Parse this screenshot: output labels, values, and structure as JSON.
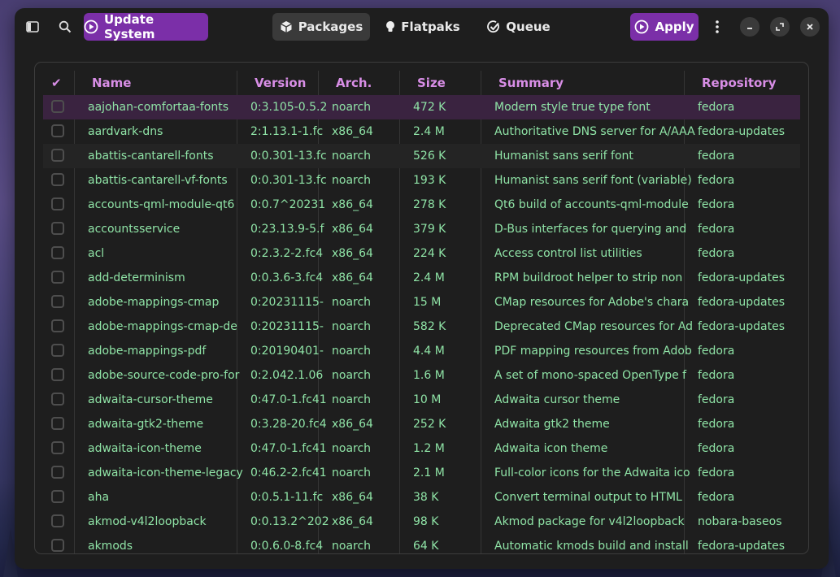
{
  "toolbar": {
    "update_label": "Update System",
    "tabs": [
      {
        "label": "Packages"
      },
      {
        "label": "Flatpaks"
      },
      {
        "label": "Queue"
      }
    ],
    "apply_label": "Apply"
  },
  "table": {
    "check_header": "✔",
    "headers": {
      "name": "Name",
      "version": "Version",
      "arch": "Arch.",
      "size": "Size",
      "summary": "Summary",
      "repo": "Repository"
    },
    "rows": [
      {
        "name": "aajohan-comfortaa-fonts",
        "version": "0:3.105-0.5.2",
        "arch": "noarch",
        "size": "472 K",
        "summary": "Modern style true type font",
        "repo": "fedora"
      },
      {
        "name": "aardvark-dns",
        "version": "2:1.13.1-1.fc",
        "arch": "x86_64",
        "size": "2.4 M",
        "summary": "Authoritative DNS server for A/AAA",
        "repo": "fedora-updates"
      },
      {
        "name": "abattis-cantarell-fonts",
        "version": "0:0.301-13.fc",
        "arch": "noarch",
        "size": "526 K",
        "summary": "Humanist sans serif font",
        "repo": "fedora"
      },
      {
        "name": "abattis-cantarell-vf-fonts",
        "version": "0:0.301-13.fc",
        "arch": "noarch",
        "size": "193 K",
        "summary": "Humanist sans serif font (variable)",
        "repo": "fedora"
      },
      {
        "name": "accounts-qml-module-qt6",
        "version": "0:0.7^20231",
        "arch": "x86_64",
        "size": "278 K",
        "summary": "Qt6 build of accounts-qml-module",
        "repo": "fedora"
      },
      {
        "name": "accountsservice",
        "version": "0:23.13.9-5.f",
        "arch": "x86_64",
        "size": "379 K",
        "summary": "D-Bus interfaces for querying and",
        "repo": "fedora"
      },
      {
        "name": "acl",
        "version": "0:2.3.2-2.fc4",
        "arch": "x86_64",
        "size": "224 K",
        "summary": "Access control list utilities",
        "repo": "fedora"
      },
      {
        "name": "add-determinism",
        "version": "0:0.3.6-3.fc4",
        "arch": "x86_64",
        "size": "2.4 M",
        "summary": "RPM buildroot helper to strip non",
        "repo": "fedora-updates"
      },
      {
        "name": "adobe-mappings-cmap",
        "version": "0:20231115-",
        "arch": "noarch",
        "size": "15 M",
        "summary": "CMap resources for Adobe's chara",
        "repo": "fedora-updates"
      },
      {
        "name": "adobe-mappings-cmap-de",
        "version": "0:20231115-",
        "arch": "noarch",
        "size": "582 K",
        "summary": "Deprecated CMap resources for Ad",
        "repo": "fedora-updates"
      },
      {
        "name": "adobe-mappings-pdf",
        "version": "0:20190401-",
        "arch": "noarch",
        "size": "4.4 M",
        "summary": "PDF mapping resources from Adob",
        "repo": "fedora"
      },
      {
        "name": "adobe-source-code-pro-for",
        "version": "0:2.042.1.06",
        "arch": "noarch",
        "size": "1.6 M",
        "summary": "A set of mono-spaced OpenType f",
        "repo": "fedora"
      },
      {
        "name": "adwaita-cursor-theme",
        "version": "0:47.0-1.fc41",
        "arch": "noarch",
        "size": "10 M",
        "summary": "Adwaita cursor theme",
        "repo": "fedora"
      },
      {
        "name": "adwaita-gtk2-theme",
        "version": "0:3.28-20.fc4",
        "arch": "x86_64",
        "size": "252 K",
        "summary": "Adwaita gtk2 theme",
        "repo": "fedora"
      },
      {
        "name": "adwaita-icon-theme",
        "version": "0:47.0-1.fc41",
        "arch": "noarch",
        "size": "1.2 M",
        "summary": "Adwaita icon theme",
        "repo": "fedora"
      },
      {
        "name": "adwaita-icon-theme-legacy",
        "version": "0:46.2-2.fc41",
        "arch": "noarch",
        "size": "2.1 M",
        "summary": "Full-color icons for the Adwaita ico",
        "repo": "fedora"
      },
      {
        "name": "aha",
        "version": "0:0.5.1-11.fc",
        "arch": "x86_64",
        "size": "38 K",
        "summary": "Convert terminal output to HTML",
        "repo": "fedora"
      },
      {
        "name": "akmod-v4l2loopback",
        "version": "0:0.13.2^202",
        "arch": "x86_64",
        "size": "98 K",
        "summary": "Akmod package for v4l2loopback",
        "repo": "nobara-baseos"
      },
      {
        "name": "akmods",
        "version": "0:0.6.0-8.fc4",
        "arch": "noarch",
        "size": "64 K",
        "summary": "Automatic kmods build and install",
        "repo": "fedora-updates"
      }
    ]
  }
}
